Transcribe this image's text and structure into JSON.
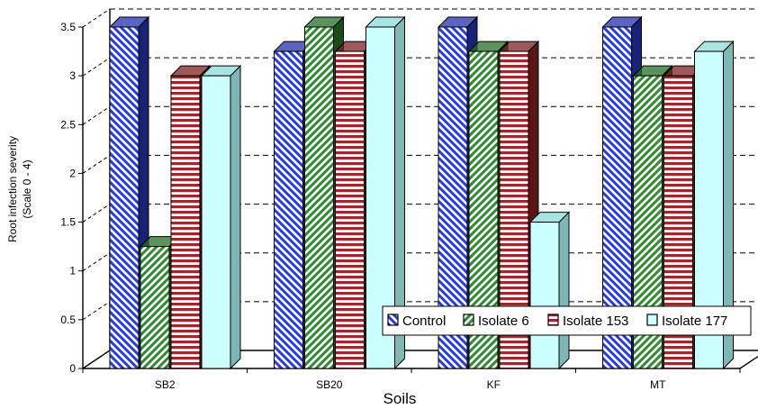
{
  "chart_data": {
    "type": "bar",
    "title": "",
    "xlabel": "Soils",
    "ylabel_line1": "Root infection severity",
    "ylabel_line2": "(Scale 0 - 4)",
    "categories": [
      "SB2",
      "SB20",
      "KF",
      "MT"
    ],
    "series": [
      {
        "name": "Control",
        "values": [
          3.5,
          3.25,
          3.5,
          3.5
        ],
        "color": "#2b3fd6",
        "pattern": "diag-back"
      },
      {
        "name": "Isolate 6",
        "values": [
          1.25,
          3.5,
          3.25,
          3.0
        ],
        "color": "#2e8b2e",
        "pattern": "diag-fwd"
      },
      {
        "name": "Isolate 153",
        "values": [
          3.0,
          3.25,
          3.25,
          3.0
        ],
        "color": "#9c2a2a",
        "pattern": "horizontal"
      },
      {
        "name": "Isolate 177",
        "values": [
          3.0,
          3.5,
          1.5,
          3.25
        ],
        "color": "#ccffff",
        "pattern": "solid"
      }
    ],
    "ylim": [
      0,
      3.5
    ],
    "yticks": [
      "0",
      "0.5",
      "1",
      "1.5",
      "2",
      "2.5",
      "3",
      "3.5"
    ],
    "gridlines": "dashed-horizontal",
    "legend_position": "bottom-right",
    "three_d": true
  }
}
